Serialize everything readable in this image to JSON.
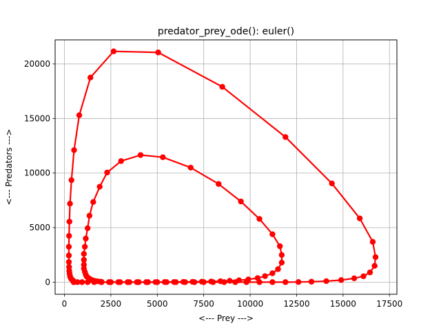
{
  "chart_data": {
    "type": "line",
    "title": "predator_prey_ode(): euler()",
    "xlabel": "<--- Prey --->",
    "ylabel": "<--- Predators --->",
    "xlim": [
      -500,
      17900
    ],
    "ylim": [
      -1100,
      22200
    ],
    "xticks": [
      0,
      2500,
      5000,
      7500,
      10000,
      12500,
      15000,
      17500
    ],
    "yticks": [
      0,
      5000,
      10000,
      15000,
      20000
    ],
    "grid": true,
    "color": "#ff0000",
    "marker": "circle",
    "series": [
      {
        "values": [
          [
            2000,
            10
          ],
          [
            2400,
            10
          ],
          [
            2900,
            10
          ],
          [
            3400,
            10
          ],
          [
            3900,
            10
          ],
          [
            4400,
            10
          ],
          [
            4900,
            15
          ],
          [
            5400,
            20
          ],
          [
            5900,
            25
          ],
          [
            6400,
            30
          ],
          [
            6900,
            40
          ],
          [
            7400,
            55
          ],
          [
            7900,
            70
          ],
          [
            8400,
            95
          ],
          [
            8900,
            130
          ],
          [
            9400,
            180
          ],
          [
            9900,
            260
          ],
          [
            10400,
            380
          ],
          [
            10800,
            560
          ],
          [
            11200,
            820
          ],
          [
            11500,
            1200
          ],
          [
            11700,
            1800
          ],
          [
            11700,
            2500
          ],
          [
            11600,
            3300
          ],
          [
            11200,
            4400
          ],
          [
            10500,
            5800
          ],
          [
            9500,
            7400
          ],
          [
            8300,
            9000
          ],
          [
            6800,
            10500
          ],
          [
            5300,
            11450
          ],
          [
            4100,
            11650
          ],
          [
            3050,
            11100
          ],
          [
            2300,
            10050
          ],
          [
            1900,
            8750
          ],
          [
            1550,
            7350
          ],
          [
            1350,
            6100
          ],
          [
            1250,
            4950
          ],
          [
            1150,
            4000
          ],
          [
            1100,
            3250
          ],
          [
            1050,
            2600
          ],
          [
            1050,
            2050
          ],
          [
            1050,
            1600
          ],
          [
            1050,
            1250
          ],
          [
            1100,
            950
          ],
          [
            1150,
            700
          ],
          [
            1200,
            520
          ],
          [
            1300,
            380
          ],
          [
            1400,
            270
          ],
          [
            1500,
            190
          ],
          [
            1600,
            130
          ],
          [
            1750,
            90
          ],
          [
            1900,
            60
          ],
          [
            2000,
            40
          ]
        ]
      },
      {
        "values": [
          [
            500,
            10
          ],
          [
            700,
            10
          ],
          [
            950,
            10
          ],
          [
            1250,
            10
          ],
          [
            1600,
            10
          ],
          [
            2000,
            10
          ],
          [
            2500,
            10
          ],
          [
            3000,
            10
          ],
          [
            3500,
            10
          ],
          [
            4000,
            10
          ],
          [
            4500,
            10
          ],
          [
            5000,
            10
          ],
          [
            5500,
            10
          ],
          [
            6000,
            10
          ],
          [
            6500,
            10
          ],
          [
            7000,
            10
          ],
          [
            7500,
            10
          ],
          [
            8000,
            10
          ],
          [
            8600,
            10
          ],
          [
            9200,
            10
          ],
          [
            9800,
            10
          ],
          [
            10500,
            10
          ],
          [
            11200,
            10
          ],
          [
            11900,
            10
          ],
          [
            12600,
            20
          ],
          [
            13300,
            50
          ],
          [
            14100,
            100
          ],
          [
            14900,
            200
          ],
          [
            15600,
            360
          ],
          [
            16100,
            550
          ],
          [
            16450,
            900
          ],
          [
            16700,
            1500
          ],
          [
            16750,
            2300
          ],
          [
            16600,
            3700
          ],
          [
            15900,
            5850
          ],
          [
            14400,
            9050
          ],
          [
            11900,
            13300
          ],
          [
            8500,
            17900
          ],
          [
            5050,
            21050
          ],
          [
            2650,
            21150
          ],
          [
            1400,
            18750
          ],
          [
            800,
            15300
          ],
          [
            520,
            12100
          ],
          [
            380,
            9350
          ],
          [
            300,
            7200
          ],
          [
            270,
            5550
          ],
          [
            250,
            4250
          ],
          [
            240,
            3250
          ],
          [
            240,
            2450
          ],
          [
            240,
            1850
          ],
          [
            250,
            1400
          ],
          [
            260,
            1050
          ],
          [
            280,
            780
          ],
          [
            300,
            580
          ],
          [
            330,
            420
          ],
          [
            370,
            300
          ],
          [
            420,
            210
          ],
          [
            480,
            140
          ],
          [
            500,
            10
          ]
        ]
      }
    ]
  }
}
